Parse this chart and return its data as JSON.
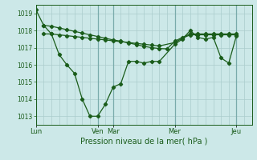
{
  "background_color": "#cce8e8",
  "grid_color": "#aacccc",
  "line_color": "#1a5c1a",
  "title": "Pression niveau de la mer( hPa )",
  "ylim": [
    1012.5,
    1019.5
  ],
  "yticks": [
    1013,
    1014,
    1015,
    1016,
    1017,
    1018,
    1019
  ],
  "xlim": [
    0,
    336
  ],
  "x_day_positions": [
    0,
    96,
    120,
    216,
    312
  ],
  "x_day_labels": [
    "Lun",
    "Ven",
    "Mar",
    "Mer",
    "Jeu"
  ],
  "series1_x": [
    0,
    12,
    24,
    36,
    48,
    60,
    72,
    84,
    96,
    108,
    120,
    132,
    144,
    156,
    168,
    180,
    192,
    216,
    228,
    240,
    252,
    264,
    276,
    288,
    300,
    312
  ],
  "series1_y": [
    1019.2,
    1018.3,
    1017.8,
    1016.6,
    1016.0,
    1015.5,
    1014.0,
    1013.0,
    1013.0,
    1013.7,
    1014.7,
    1014.9,
    1016.2,
    1016.2,
    1016.1,
    1016.2,
    1016.2,
    1017.2,
    1017.5,
    1018.0,
    1017.6,
    1017.5,
    1017.6,
    1016.4,
    1016.1,
    1017.7
  ],
  "series2_x": [
    12,
    24,
    36,
    48,
    60,
    72,
    84,
    96,
    108,
    120,
    132,
    144,
    156,
    168,
    180,
    192,
    204,
    216,
    228,
    240,
    252,
    264,
    276,
    288,
    300,
    312
  ],
  "series2_y": [
    1018.3,
    1018.25,
    1018.15,
    1018.05,
    1017.95,
    1017.85,
    1017.75,
    1017.65,
    1017.55,
    1017.45,
    1017.38,
    1017.28,
    1017.18,
    1017.08,
    1017.0,
    1016.95,
    1016.93,
    1017.38,
    1017.6,
    1017.8,
    1017.8,
    1017.8,
    1017.8,
    1017.8,
    1017.8,
    1017.8
  ],
  "series3_x": [
    12,
    24,
    36,
    48,
    60,
    72,
    84,
    96,
    108,
    120,
    132,
    144,
    156,
    168,
    180,
    192,
    216,
    228,
    240,
    252,
    264,
    276,
    288,
    300,
    312
  ],
  "series3_y": [
    1017.8,
    1017.8,
    1017.75,
    1017.7,
    1017.65,
    1017.6,
    1017.55,
    1017.5,
    1017.45,
    1017.4,
    1017.35,
    1017.3,
    1017.25,
    1017.2,
    1017.15,
    1017.1,
    1017.3,
    1017.55,
    1017.75,
    1017.75,
    1017.75,
    1017.75,
    1017.75,
    1017.75,
    1017.75
  ]
}
